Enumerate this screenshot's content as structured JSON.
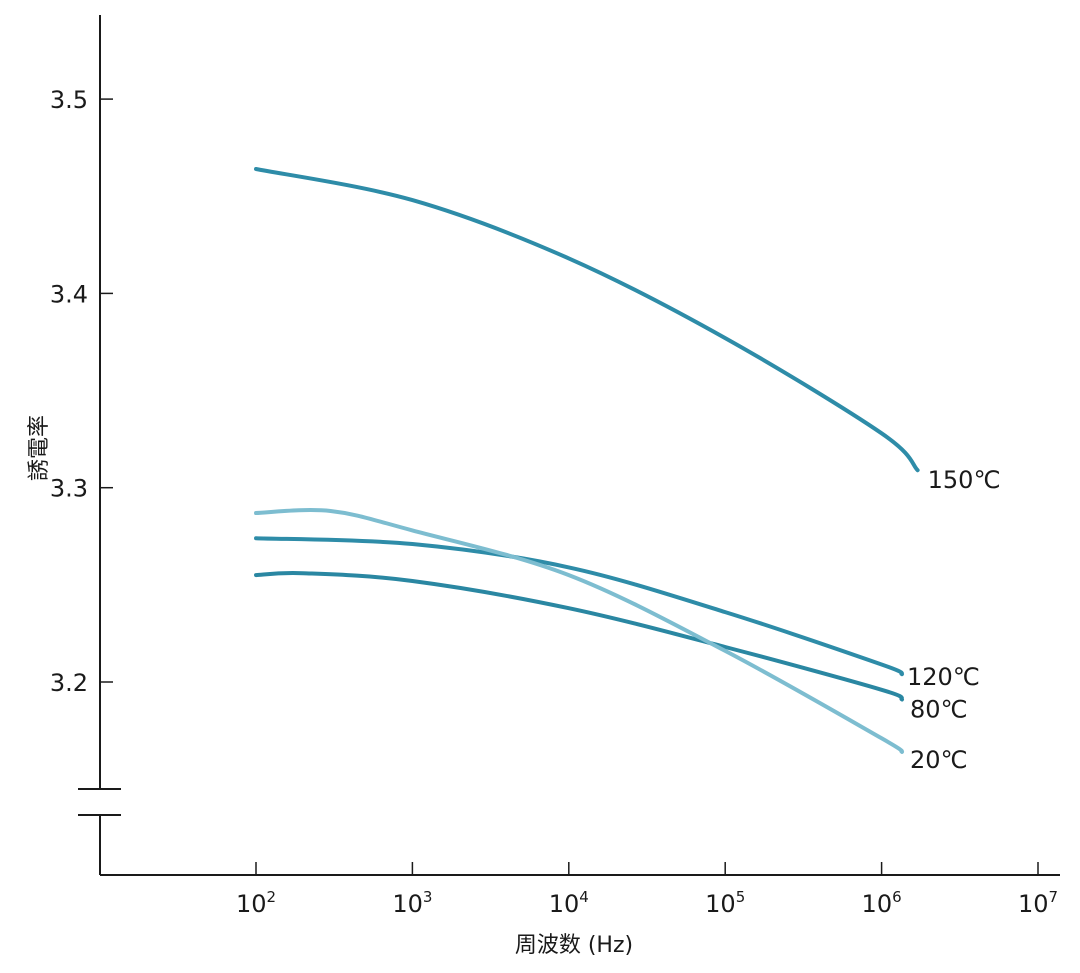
{
  "chart_data": {
    "type": "line",
    "ylabel": "誘電率",
    "xlabel": "周波数 (Hz)",
    "x_scale": "log",
    "xlim": [
      1,
      10000000
    ],
    "ylim": [
      3.0,
      3.5
    ],
    "y_axis_break": true,
    "grid": false,
    "x_ticks": [
      {
        "base": "10",
        "exp": "2",
        "value": 100
      },
      {
        "base": "10",
        "exp": "3",
        "value": 1000
      },
      {
        "base": "10",
        "exp": "4",
        "value": 10000
      },
      {
        "base": "10",
        "exp": "5",
        "value": 100000
      },
      {
        "base": "10",
        "exp": "6",
        "value": 1000000
      },
      {
        "base": "10",
        "exp": "7",
        "value": 10000000
      }
    ],
    "y_ticks": [
      "3.2",
      "3.3",
      "3.4",
      "3.5"
    ],
    "series": [
      {
        "name": "150℃",
        "color": "#2e8ca8",
        "x": [
          100,
          1000,
          10000,
          100000,
          1000000,
          1700000
        ],
        "y": [
          3.464,
          3.448,
          3.418,
          3.377,
          3.328,
          3.309
        ]
      },
      {
        "name": "120℃",
        "color": "#2e8ca8",
        "x": [
          100,
          1000,
          10000,
          100000,
          1000000,
          1350000
        ],
        "y": [
          3.274,
          3.271,
          3.259,
          3.236,
          3.209,
          3.204
        ]
      },
      {
        "name": "80℃",
        "color": "#2a87a2",
        "x": [
          100,
          200,
          1000,
          10000,
          100000,
          1000000,
          1350000
        ],
        "y": [
          3.255,
          3.256,
          3.252,
          3.238,
          3.218,
          3.196,
          3.191
        ]
      },
      {
        "name": "20℃",
        "color": "#7dbdd0",
        "x": [
          100,
          300,
          1000,
          10000,
          100000,
          1000000,
          1350000
        ],
        "y": [
          3.287,
          3.288,
          3.278,
          3.255,
          3.216,
          3.171,
          3.164
        ]
      }
    ]
  }
}
